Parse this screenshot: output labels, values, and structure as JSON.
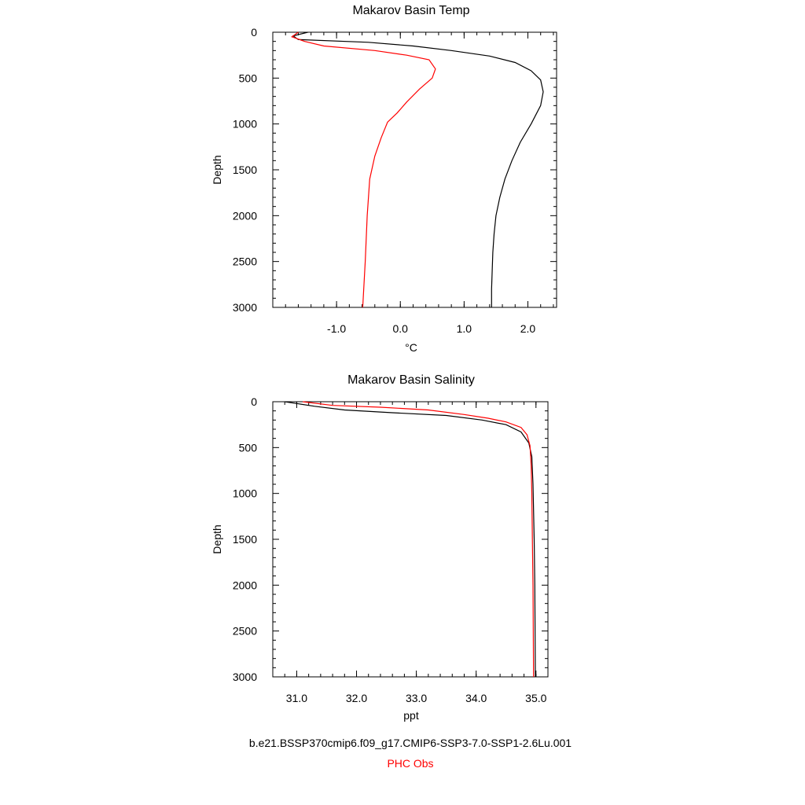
{
  "chart_data": [
    {
      "type": "line",
      "title": "Makarov Basin Temp",
      "xlabel": "°C",
      "ylabel": "Depth",
      "xlim": [
        -2.0,
        2.45
      ],
      "ylim": [
        3000,
        0
      ],
      "xticks": [
        -1.0,
        0.0,
        1.0,
        2.0
      ],
      "xtick_labels": [
        "-1.0",
        "0.0",
        "1.0",
        "2.0"
      ],
      "yticks": [
        0,
        500,
        1000,
        1500,
        2000,
        2500,
        3000
      ],
      "ytick_labels": [
        "0",
        "500",
        "1000",
        "1500",
        "2000",
        "2500",
        "3000"
      ],
      "grid": false,
      "series": [
        {
          "color": "#000000",
          "points": [
            [
              -1.45,
              0
            ],
            [
              -1.68,
              40
            ],
            [
              -1.6,
              80
            ],
            [
              -0.5,
              110
            ],
            [
              0.2,
              150
            ],
            [
              0.8,
              200
            ],
            [
              1.4,
              260
            ],
            [
              1.8,
              330
            ],
            [
              2.05,
              420
            ],
            [
              2.2,
              520
            ],
            [
              2.24,
              650
            ],
            [
              2.2,
              800
            ],
            [
              2.05,
              1000
            ],
            [
              1.88,
              1200
            ],
            [
              1.75,
              1400
            ],
            [
              1.64,
              1600
            ],
            [
              1.56,
              1800
            ],
            [
              1.5,
              2000
            ],
            [
              1.47,
              2200
            ],
            [
              1.45,
              2400
            ],
            [
              1.44,
              2600
            ],
            [
              1.43,
              2800
            ],
            [
              1.43,
              3000
            ]
          ]
        },
        {
          "color": "#ff0000",
          "points": [
            [
              -1.6,
              0
            ],
            [
              -1.7,
              50
            ],
            [
              -1.5,
              100
            ],
            [
              -1.2,
              150
            ],
            [
              -0.4,
              200
            ],
            [
              0.1,
              250
            ],
            [
              0.45,
              300
            ],
            [
              0.55,
              400
            ],
            [
              0.5,
              500
            ],
            [
              0.3,
              620
            ],
            [
              0.1,
              760
            ],
            [
              -0.05,
              880
            ],
            [
              -0.2,
              980
            ],
            [
              -0.3,
              1150
            ],
            [
              -0.4,
              1350
            ],
            [
              -0.48,
              1600
            ],
            [
              -0.52,
              2000
            ],
            [
              -0.55,
              2500
            ],
            [
              -0.59,
              3000
            ]
          ]
        }
      ]
    },
    {
      "type": "line",
      "title": "Makarov Basin Salinity",
      "xlabel": "ppt",
      "ylabel": "Depth",
      "xlim": [
        30.6,
        35.2
      ],
      "ylim": [
        3000,
        0
      ],
      "xticks": [
        31.0,
        32.0,
        33.0,
        34.0,
        35.0
      ],
      "xtick_labels": [
        "31.0",
        "32.0",
        "33.0",
        "34.0",
        "35.0"
      ],
      "yticks": [
        0,
        500,
        1000,
        1500,
        2000,
        2500,
        3000
      ],
      "ytick_labels": [
        "0",
        "500",
        "1000",
        "1500",
        "2000",
        "2500",
        "3000"
      ],
      "grid": false,
      "series": [
        {
          "color": "#000000",
          "points": [
            [
              30.8,
              0
            ],
            [
              31.0,
              20
            ],
            [
              31.3,
              50
            ],
            [
              31.8,
              90
            ],
            [
              32.6,
              120
            ],
            [
              33.5,
              150
            ],
            [
              34.1,
              200
            ],
            [
              34.5,
              250
            ],
            [
              34.75,
              330
            ],
            [
              34.88,
              450
            ],
            [
              34.93,
              600
            ],
            [
              34.95,
              900
            ],
            [
              34.97,
              1500
            ],
            [
              34.98,
              2000
            ],
            [
              34.99,
              3000
            ]
          ]
        },
        {
          "color": "#ff0000",
          "points": [
            [
              31.1,
              0
            ],
            [
              31.6,
              40
            ],
            [
              32.4,
              60
            ],
            [
              33.2,
              90
            ],
            [
              33.8,
              140
            ],
            [
              34.2,
              180
            ],
            [
              34.5,
              220
            ],
            [
              34.75,
              280
            ],
            [
              34.85,
              360
            ],
            [
              34.9,
              480
            ],
            [
              34.92,
              700
            ],
            [
              34.93,
              1000
            ],
            [
              34.94,
              1500
            ],
            [
              34.95,
              2000
            ],
            [
              34.96,
              3000
            ]
          ]
        }
      ]
    }
  ],
  "caption": {
    "model_label": "b.e21.BSSP370cmip6.f09_g17.CMIP6-SSP3-7.0-SSP1-2.6Lu.001",
    "obs_label": "PHC Obs",
    "model_color": "#000000",
    "obs_color": "#ff0000"
  }
}
